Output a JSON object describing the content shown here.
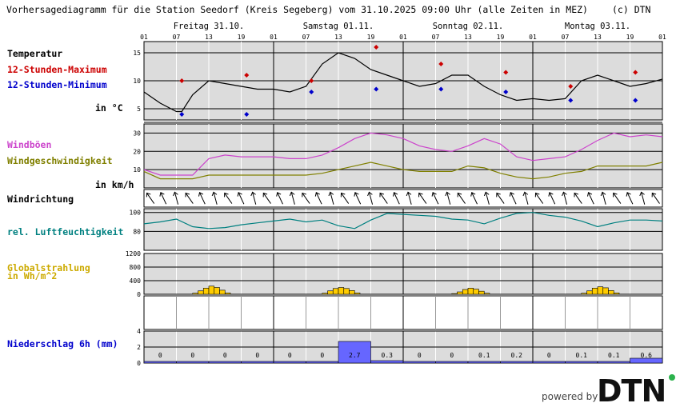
{
  "header": {
    "title": "Vorhersagediagramm für die Station Seedorf (Kreis Segeberg) vom 31.10.2025 09:00 Uhr (alle Zeiten in MEZ)",
    "copyright": "(c) DTN"
  },
  "days": [
    "Freitag 31.10.",
    "Samstag 01.11.",
    "Sonntag 02.11.",
    "Montag 03.11."
  ],
  "hour_labels": [
    "01",
    "07",
    "13",
    "19",
    "01",
    "07",
    "13",
    "19",
    "01",
    "07",
    "13",
    "19",
    "01",
    "07",
    "13",
    "19",
    "01"
  ],
  "labels": {
    "temperatur": "Temperatur",
    "max": "12-Stunden-Maximum",
    "min": "12-Stunden-Minimum",
    "temp_unit": "in °C",
    "windboeen": "Windböen",
    "windgeschw": "Windgeschwindigkeit",
    "wind_unit": "in km/h",
    "windrichtung": "Windrichtung",
    "feuchte": "rel. Luftfeuchtigkeit",
    "strahlung_1": "Globalstrahlung",
    "strahlung_2": "in Wh/m^2",
    "niederschlag": "Niederschlag 6h (mm)"
  },
  "footer": {
    "powered_by": "powered by",
    "logo_text": "DTN"
  },
  "colors": {
    "panel_bg": "#dcdcdc",
    "temperature": "#000000",
    "max_marker": "#cc0000",
    "min_marker": "#0000cc",
    "gusts": "#cc44cc",
    "wind": "#808000",
    "humidity": "#008080",
    "radiation": "#ffcc00",
    "precip": "#6666ff",
    "label_temp_max": "#cc0000",
    "label_temp_min": "#0000cc",
    "label_gusts": "#cc44cc",
    "label_wind": "#808000",
    "label_humidity": "#008080",
    "label_radiation": "#ccaa00",
    "label_precip": "#0000cc"
  },
  "chart_data": {
    "type": "line",
    "x_unit": "hours since 31.10. 01:00",
    "temperature": {
      "yticks": [
        5,
        10,
        15
      ],
      "ylim": [
        3,
        17
      ],
      "x": [
        0,
        3,
        6,
        7,
        9,
        12,
        15,
        18,
        21,
        24,
        27,
        30,
        33,
        36,
        39,
        42,
        45,
        48,
        51,
        54,
        57,
        60,
        63,
        66,
        69,
        72,
        75,
        78,
        81,
        84,
        87,
        90,
        93,
        96
      ],
      "values": [
        8,
        6,
        4.5,
        4.5,
        7.5,
        10,
        9.5,
        9,
        8.5,
        8.5,
        8,
        9,
        13,
        15,
        14,
        12,
        11,
        10,
        9,
        9.5,
        11,
        11,
        9,
        7.5,
        6.5,
        6.8,
        6.5,
        6.8,
        10,
        11,
        10,
        9,
        9.5,
        10.3
      ],
      "max": [
        {
          "x": 7,
          "value": 10
        },
        {
          "x": 19,
          "value": 11
        },
        {
          "x": 31,
          "value": 10
        },
        {
          "x": 43,
          "value": 16
        },
        {
          "x": 55,
          "value": 13
        },
        {
          "x": 67,
          "value": 11.5
        },
        {
          "x": 79,
          "value": 9
        },
        {
          "x": 91,
          "value": 11.5
        }
      ],
      "min": [
        {
          "x": 7,
          "value": 4
        },
        {
          "x": 19,
          "value": 4
        },
        {
          "x": 31,
          "value": 8
        },
        {
          "x": 43,
          "value": 8.5
        },
        {
          "x": 55,
          "value": 8.5
        },
        {
          "x": 67,
          "value": 8
        },
        {
          "x": 79,
          "value": 6.5
        },
        {
          "x": 91,
          "value": 6.5
        }
      ]
    },
    "wind": {
      "yticks": [
        10,
        20,
        30
      ],
      "ylim": [
        0,
        35
      ],
      "x": [
        0,
        3,
        6,
        9,
        12,
        15,
        18,
        21,
        24,
        27,
        30,
        33,
        36,
        39,
        42,
        45,
        48,
        51,
        54,
        57,
        60,
        63,
        66,
        69,
        72,
        75,
        78,
        81,
        84,
        87,
        90,
        93,
        96
      ],
      "gusts": [
        10,
        7,
        7,
        7,
        16,
        18,
        17,
        17,
        17,
        16,
        16,
        18,
        22,
        27,
        30,
        29,
        27,
        23,
        21,
        20,
        23,
        27,
        24,
        17,
        15,
        16,
        17,
        21,
        26,
        30,
        28,
        29,
        28
      ],
      "speed": [
        9,
        5,
        5,
        5,
        7,
        7,
        7,
        7,
        7,
        7,
        7,
        8,
        10,
        12,
        14,
        12,
        10,
        9,
        9,
        9,
        12,
        11,
        8,
        6,
        5,
        6,
        8,
        9,
        12,
        12,
        12,
        12,
        14
      ]
    },
    "wind_direction_count": 40,
    "humidity": {
      "yticks": [
        80,
        100
      ],
      "ylim": [
        60,
        104
      ],
      "x": [
        0,
        3,
        6,
        9,
        12,
        15,
        18,
        21,
        24,
        27,
        30,
        33,
        36,
        39,
        42,
        45,
        48,
        51,
        54,
        57,
        60,
        63,
        66,
        69,
        72,
        75,
        78,
        81,
        84,
        87,
        90,
        93,
        96
      ],
      "values": [
        88,
        90,
        93,
        85,
        83,
        84,
        87,
        89,
        91,
        93,
        90,
        92,
        86,
        83,
        92,
        99,
        98,
        97,
        96,
        93,
        92,
        88,
        94,
        99,
        100,
        97,
        95,
        91,
        85,
        89,
        92,
        92,
        91
      ]
    },
    "radiation": {
      "yticks": [
        0,
        400,
        800,
        1200
      ],
      "ylim": [
        0,
        1200
      ],
      "bars": [
        {
          "day": 0,
          "values": [
            30,
            100,
            180,
            240,
            200,
            120,
            40
          ]
        },
        {
          "day": 1,
          "values": [
            30,
            100,
            170,
            200,
            170,
            110,
            40
          ]
        },
        {
          "day": 2,
          "values": [
            20,
            70,
            140,
            180,
            150,
            90,
            30
          ]
        },
        {
          "day": 3,
          "values": [
            30,
            100,
            180,
            220,
            190,
            110,
            40
          ]
        }
      ]
    },
    "precipitation": {
      "yticks": [
        0,
        2,
        4
      ],
      "ylim": [
        0,
        4
      ],
      "values": [
        0,
        0,
        0,
        0,
        0,
        0,
        2.7,
        0.3,
        0,
        0,
        0.1,
        0.2,
        0,
        0.1,
        0.1,
        0.6
      ],
      "labels": [
        "0",
        "0",
        "0",
        "0",
        "0",
        "0",
        "2.7",
        "0.3",
        "0",
        "0",
        "0.1",
        "0.2",
        "0",
        "0.1",
        "0.1",
        "0.6"
      ]
    }
  }
}
